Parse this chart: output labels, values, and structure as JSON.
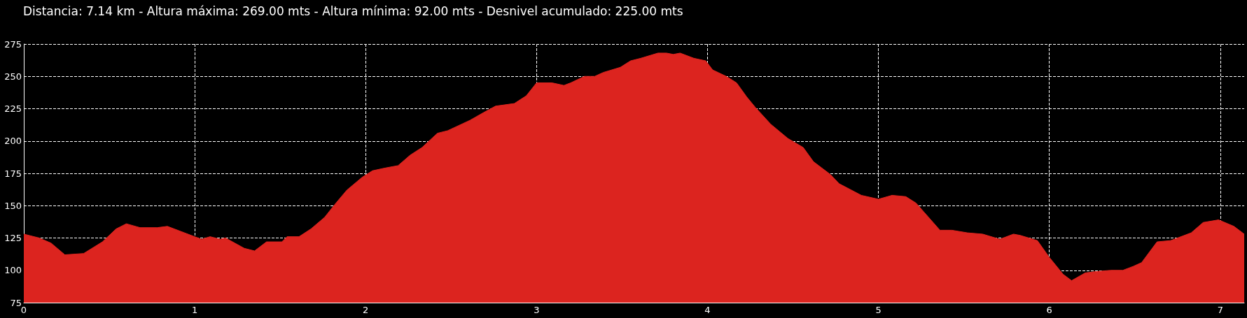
{
  "chart_data": {
    "type": "area",
    "title": "Distancia: 7.14 km - Altura máxima: 269.00 mts - Altura mínima: 92.00 mts - Desnivel acumulado: 225.00 mts",
    "x": [
      0,
      0.09,
      0.16,
      0.24,
      0.35,
      0.46,
      0.54,
      0.6,
      0.68,
      0.78,
      0.84,
      0.92,
      1.0,
      1.04,
      1.09,
      1.15,
      1.18,
      1.29,
      1.35,
      1.42,
      1.51,
      1.54,
      1.61,
      1.68,
      1.76,
      1.82,
      1.89,
      1.98,
      2.04,
      2.11,
      2.19,
      2.26,
      2.33,
      2.42,
      2.48,
      2.61,
      2.69,
      2.76,
      2.87,
      2.94,
      3.0,
      3.09,
      3.16,
      3.2,
      3.28,
      3.34,
      3.39,
      3.49,
      3.55,
      3.61,
      3.71,
      3.76,
      3.8,
      3.84,
      3.92,
      3.99,
      4.03,
      4.11,
      4.17,
      4.23,
      4.28,
      4.37,
      4.47,
      4.56,
      4.62,
      4.72,
      4.77,
      4.9,
      5.0,
      5.08,
      5.16,
      5.22,
      5.36,
      5.43,
      5.52,
      5.61,
      5.71,
      5.79,
      5.83,
      5.93,
      6.0,
      6.08,
      6.13,
      6.21,
      6.27,
      6.36,
      6.43,
      6.49,
      6.54,
      6.63,
      6.71,
      6.83,
      6.9,
      6.99,
      7.08,
      7.14
    ],
    "series": [
      {
        "color": "#dc241f",
        "values": [
          128,
          125,
          121,
          112,
          113,
          122,
          132,
          136,
          133,
          133,
          134,
          130,
          126,
          124,
          126,
          124,
          125,
          117,
          115,
          122,
          122,
          126,
          126,
          132,
          141,
          151,
          162,
          172,
          177,
          179,
          181,
          189,
          195,
          206,
          208,
          216,
          222,
          227,
          229,
          235,
          245,
          245,
          243,
          245,
          250,
          250,
          253,
          257,
          262,
          264,
          268,
          268,
          267,
          268,
          264,
          262,
          255,
          250,
          245,
          234,
          226,
          213,
          202,
          195,
          184,
          174,
          167,
          158,
          155,
          158,
          157,
          152,
          131,
          131,
          129,
          128,
          124,
          128,
          127,
          123,
          110,
          97,
          92,
          98,
          99,
          100,
          100,
          103,
          106,
          122,
          123,
          129,
          137,
          139,
          134,
          128
        ]
      }
    ],
    "xlim": [
      0,
      7.14
    ],
    "xticks": [
      0,
      1,
      2,
      3,
      4,
      5,
      6,
      7
    ],
    "ylim": [
      75,
      275
    ],
    "yticks": [
      75,
      100,
      125,
      150,
      175,
      200,
      225,
      250,
      275
    ],
    "grid": true,
    "line_style": "dashed",
    "marker": "none"
  }
}
